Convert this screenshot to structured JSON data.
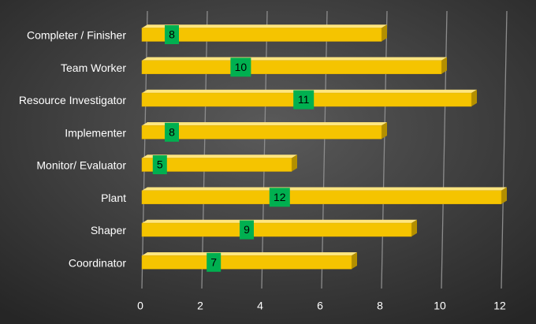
{
  "chart_data": {
    "type": "bar",
    "orientation": "horizontal",
    "categories": [
      "Completer / Finisher",
      "Team Worker",
      "Resource Investigator",
      "Implementer",
      "Monitor/ Evaluator",
      "Plant",
      "Shaper",
      "Coordinator"
    ],
    "values": [
      8,
      10,
      11,
      8,
      5,
      12,
      9,
      7
    ],
    "color": "#f5c400",
    "label_color": "#00b050",
    "xlim": [
      0,
      12
    ],
    "xticks": [
      0,
      2,
      4,
      6,
      8,
      10,
      12
    ],
    "grid": true
  }
}
